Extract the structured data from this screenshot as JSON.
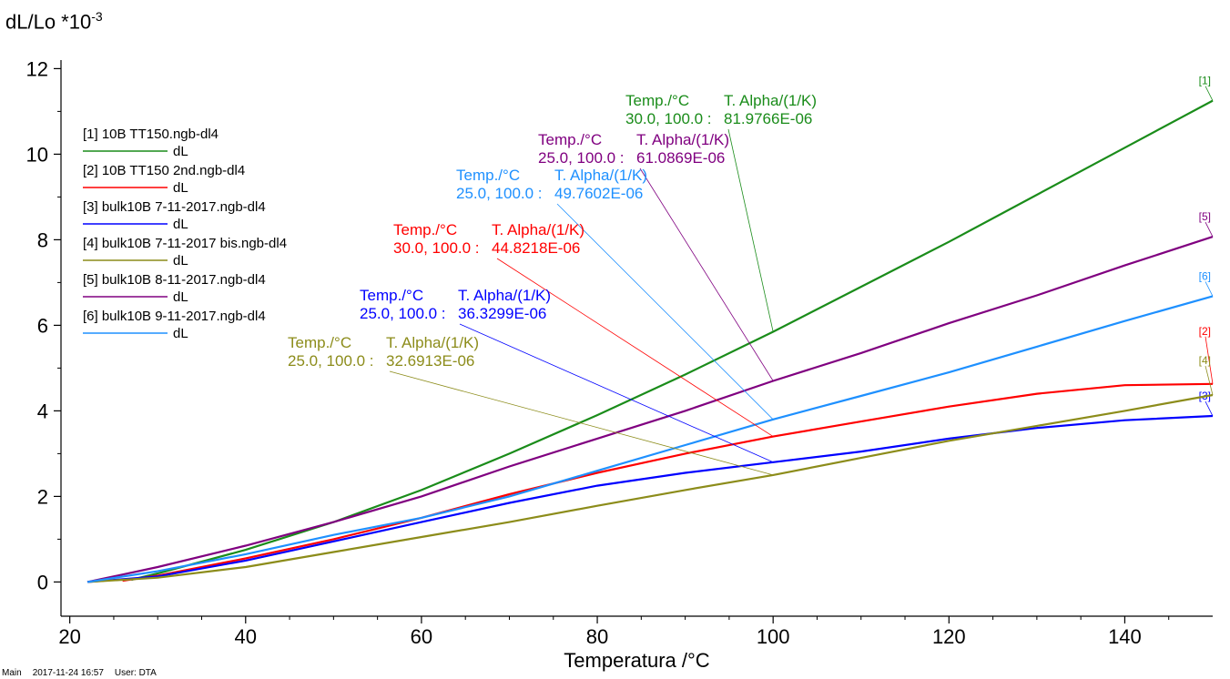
{
  "chart_data": {
    "type": "line",
    "title": "",
    "ylabel_main": "dL/Lo *10",
    "ylabel_exp": "-3",
    "xlabel": "Temperatura /°C",
    "xlim": [
      19,
      150
    ],
    "ylim": [
      -0.8,
      12.2
    ],
    "xticks": [
      20,
      40,
      60,
      80,
      100,
      120,
      140
    ],
    "yticks": [
      0,
      2,
      4,
      6,
      8,
      10,
      12
    ],
    "grid": false,
    "legend_position": "top-left",
    "series": [
      {
        "id": "[1]",
        "name": "[1] 10B TT150.ngb-dl4",
        "sub": "dL",
        "color": "#1a8c1a",
        "x": [
          27,
          30,
          40,
          50,
          60,
          70,
          80,
          90,
          100,
          110,
          120,
          130,
          140,
          150
        ],
        "y": [
          0.05,
          0.2,
          0.75,
          1.4,
          2.15,
          3.0,
          3.9,
          4.85,
          5.85,
          6.9,
          7.95,
          9.05,
          10.15,
          11.25
        ]
      },
      {
        "id": "[2]",
        "name": "[2] 10B TT150 2nd.ngb-dl4",
        "sub": "dL",
        "color": "#ff0000",
        "x": [
          26,
          30,
          40,
          50,
          60,
          70,
          80,
          90,
          100,
          110,
          120,
          130,
          140,
          150
        ],
        "y": [
          0.03,
          0.15,
          0.55,
          1.0,
          1.5,
          2.05,
          2.55,
          3.0,
          3.4,
          3.75,
          4.1,
          4.4,
          4.6,
          4.63
        ]
      },
      {
        "id": "[3]",
        "name": "[3] bulk10B 7-11-2017.ngb-dl4",
        "sub": "dL",
        "color": "#0000ff",
        "x": [
          22,
          30,
          40,
          50,
          60,
          70,
          80,
          90,
          100,
          110,
          120,
          130,
          140,
          150
        ],
        "y": [
          0.0,
          0.13,
          0.5,
          0.95,
          1.4,
          1.85,
          2.25,
          2.55,
          2.8,
          3.05,
          3.35,
          3.6,
          3.78,
          3.88
        ]
      },
      {
        "id": "[4]",
        "name": "[4] bulk10B 7-11-2017 bis.ngb-dl4",
        "sub": "dL",
        "color": "#8c8c1a",
        "x": [
          22,
          30,
          40,
          50,
          60,
          70,
          80,
          90,
          100,
          110,
          120,
          130,
          140,
          150
        ],
        "y": [
          0.0,
          0.1,
          0.35,
          0.7,
          1.05,
          1.4,
          1.78,
          2.15,
          2.5,
          2.9,
          3.3,
          3.65,
          4.0,
          4.37
        ]
      },
      {
        "id": "[5]",
        "name": "[5] bulk10B 8-11-2017.ngb-dl4",
        "sub": "dL",
        "color": "#800080",
        "x": [
          22,
          30,
          40,
          50,
          60,
          70,
          80,
          90,
          100,
          110,
          120,
          130,
          140,
          150
        ],
        "y": [
          0.0,
          0.35,
          0.85,
          1.4,
          2.0,
          2.7,
          3.35,
          4.0,
          4.7,
          5.35,
          6.05,
          6.7,
          7.4,
          8.07
        ]
      },
      {
        "id": "[6]",
        "name": "[6] bulk10B 9-11-2017.ngb-dl4",
        "sub": "dL",
        "color": "#1e90ff",
        "x": [
          22,
          30,
          40,
          50,
          60,
          70,
          80,
          90,
          100,
          110,
          120,
          130,
          140,
          150
        ],
        "y": [
          0.0,
          0.25,
          0.65,
          1.1,
          1.5,
          2.0,
          2.6,
          3.2,
          3.8,
          4.35,
          4.9,
          5.5,
          6.1,
          6.68
        ]
      }
    ],
    "annotations": [
      {
        "color": "#1a8c1a",
        "h1": "Temp./°C",
        "h2": "T. Alpha/(1/K)",
        "v1": "30.0, 100.0 :",
        "v2": "81.9766E-06",
        "anchor_x": 100,
        "anchor_y": 5.85
      },
      {
        "color": "#800080",
        "h1": "Temp./°C",
        "h2": "T. Alpha/(1/K)",
        "v1": "25.0, 100.0 :",
        "v2": "61.0869E-06",
        "anchor_x": 100,
        "anchor_y": 4.7
      },
      {
        "color": "#1e90ff",
        "h1": "Temp./°C",
        "h2": "T. Alpha/(1/K)",
        "v1": "25.0, 100.0 :",
        "v2": "49.7602E-06",
        "anchor_x": 100,
        "anchor_y": 3.8
      },
      {
        "color": "#ff0000",
        "h1": "Temp./°C",
        "h2": "T. Alpha/(1/K)",
        "v1": "30.0, 100.0 :",
        "v2": "44.8218E-06",
        "anchor_x": 100,
        "anchor_y": 3.4
      },
      {
        "color": "#0000ff",
        "h1": "Temp./°C",
        "h2": "T. Alpha/(1/K)",
        "v1": "25.0, 100.0 :",
        "v2": "36.3299E-06",
        "anchor_x": 100,
        "anchor_y": 2.8
      },
      {
        "color": "#8c8c1a",
        "h1": "Temp./°C",
        "h2": "T. Alpha/(1/K)",
        "v1": "25.0, 100.0 :",
        "v2": "32.6913E-06",
        "anchor_x": 100,
        "anchor_y": 2.5
      }
    ]
  },
  "footer": {
    "main": "Main",
    "datetime": "2017-11-24 16:57",
    "user": "User: DTA"
  }
}
